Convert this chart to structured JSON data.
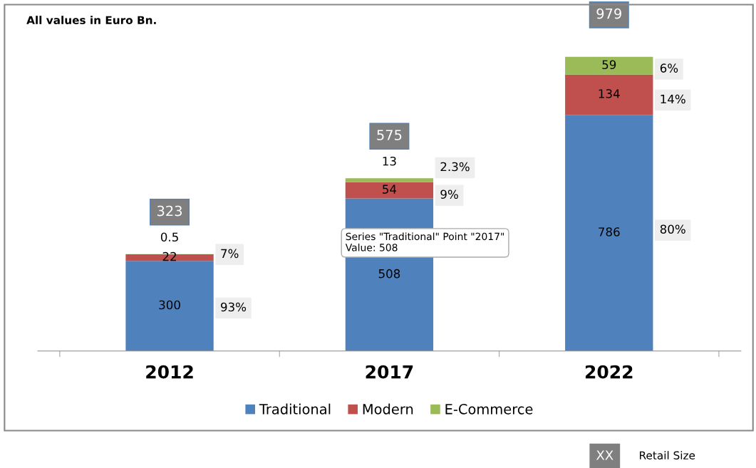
{
  "chart_data": {
    "type": "bar",
    "title": "All values in Euro Bn.",
    "categories": [
      "2012",
      "2017",
      "2022"
    ],
    "stacked": true,
    "series": [
      {
        "name": "Traditional",
        "color": "#4f81bd",
        "values": [
          300,
          508,
          786
        ]
      },
      {
        "name": "Modern",
        "color": "#c0504d",
        "values": [
          22,
          54,
          134
        ]
      },
      {
        "name": "E-Commerce",
        "color": "#9bbb59",
        "values": [
          0.5,
          13,
          59
        ]
      }
    ],
    "data_labels": true,
    "totals": [
      "323",
      "575",
      "979"
    ],
    "tick_labels": "x",
    "legend": "bottom",
    "grid": false,
    "annotations": [
      "93%",
      "7%",
      "9%",
      "2.3%",
      "80%",
      "14%",
      "6%",
      "Series \"Traditional\" Point \"2017\"\nValue: 508",
      "XX",
      "Retail Size"
    ]
  }
}
